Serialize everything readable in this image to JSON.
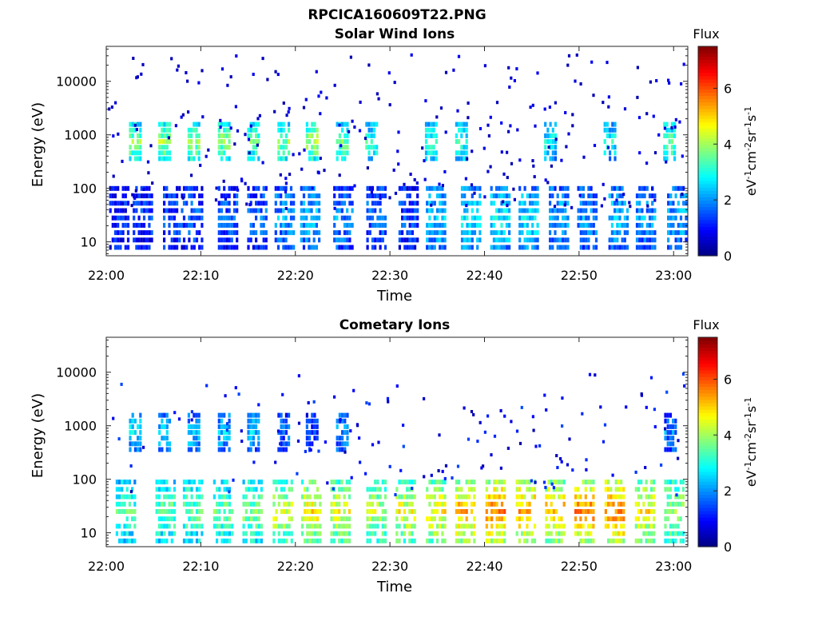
{
  "figure": {
    "title": "RPCICA160609T22.PNG"
  },
  "chart_data": [
    {
      "type": "heatmap",
      "title": "Solar Wind Ions",
      "xlabel": "Time",
      "ylabel": "Energy (eV)",
      "x_ticks": [
        "22:00",
        "22:10",
        "22:20",
        "22:30",
        "22:40",
        "22:50",
        "23:00"
      ],
      "x_range_minutes": [
        0,
        61.5
      ],
      "y_scale": "log",
      "y_ticks": [
        "10",
        "100",
        "1000",
        "10000"
      ],
      "y_range": [
        5.5,
        45000
      ],
      "colorbar": {
        "title": "Flux",
        "label": "eV-1cm-2sr-1s-1",
        "ticks": [
          "0",
          "2",
          "4",
          "6"
        ],
        "range": [
          0,
          7.5
        ],
        "colormap": "jet"
      },
      "bands": [
        {
          "name": "high-energy",
          "center_eV": 750,
          "starts_min": [
            2.4,
            5.5,
            8.6,
            11.8,
            14.9,
            18.1,
            21.1,
            24.3,
            27.4,
            33.7,
            36.9,
            46.3,
            52.6,
            58.9
          ],
          "level": [
            3.6,
            3.8,
            3.8,
            3.7,
            3.5,
            3.6,
            3.9,
            3.6,
            3.0,
            3.0,
            3.0,
            2.8,
            2.8,
            3.4
          ]
        },
        {
          "name": "low-energy",
          "center_eV": 28,
          "starts_min": [
            0.3,
            2.8,
            6.0,
            8.1,
            11.8,
            14.9,
            17.8,
            20.5,
            24.0,
            27.5,
            30.9,
            33.8,
            37.5,
            40.6,
            43.6,
            46.8,
            49.8,
            53.1,
            56.0,
            59.3
          ],
          "level": [
            1.2,
            1.3,
            1.4,
            1.5,
            1.5,
            1.6,
            2.0,
            2.2,
            1.9,
            1.6,
            1.4,
            2.4,
            2.5,
            2.6,
            2.5,
            2.2,
            2.0,
            2.3,
            2.0,
            2.1
          ]
        }
      ]
    },
    {
      "type": "heatmap",
      "title": "Cometary Ions",
      "xlabel": "Time",
      "ylabel": "Energy (eV)",
      "x_ticks": [
        "22:00",
        "22:10",
        "22:20",
        "22:30",
        "22:40",
        "22:50",
        "23:00"
      ],
      "x_range_minutes": [
        0,
        61.5
      ],
      "y_scale": "log",
      "y_ticks": [
        "10",
        "100",
        "1000",
        "10000"
      ],
      "y_range": [
        5.5,
        45000
      ],
      "colorbar": {
        "title": "Flux",
        "label": "eV-1cm-2sr-1s-1",
        "ticks": [
          "0",
          "2",
          "4",
          "6"
        ],
        "range": [
          0,
          7.5
        ],
        "colormap": "jet"
      },
      "bands": [
        {
          "name": "high-energy",
          "center_eV": 750,
          "starts_min": [
            2.4,
            5.5,
            8.6,
            11.8,
            14.9,
            18.1,
            21.1,
            24.3,
            59.0
          ],
          "level": [
            2.5,
            2.4,
            2.4,
            2.3,
            2.3,
            1.6,
            1.5,
            2.0,
            1.8
          ]
        },
        {
          "name": "low-energy",
          "center_eV": 25,
          "starts_min": [
            1.0,
            5.2,
            8.1,
            11.3,
            14.4,
            17.6,
            20.6,
            23.7,
            27.5,
            30.6,
            33.8,
            36.9,
            40.1,
            43.3,
            46.4,
            49.5,
            52.7,
            55.9,
            59.0
          ],
          "level": [
            3.2,
            3.4,
            3.4,
            3.5,
            3.6,
            4.2,
            4.6,
            4.3,
            4.0,
            4.4,
            4.6,
            5.1,
            5.4,
            5.2,
            5.0,
            5.4,
            5.5,
            4.6,
            4.0
          ]
        }
      ]
    }
  ]
}
